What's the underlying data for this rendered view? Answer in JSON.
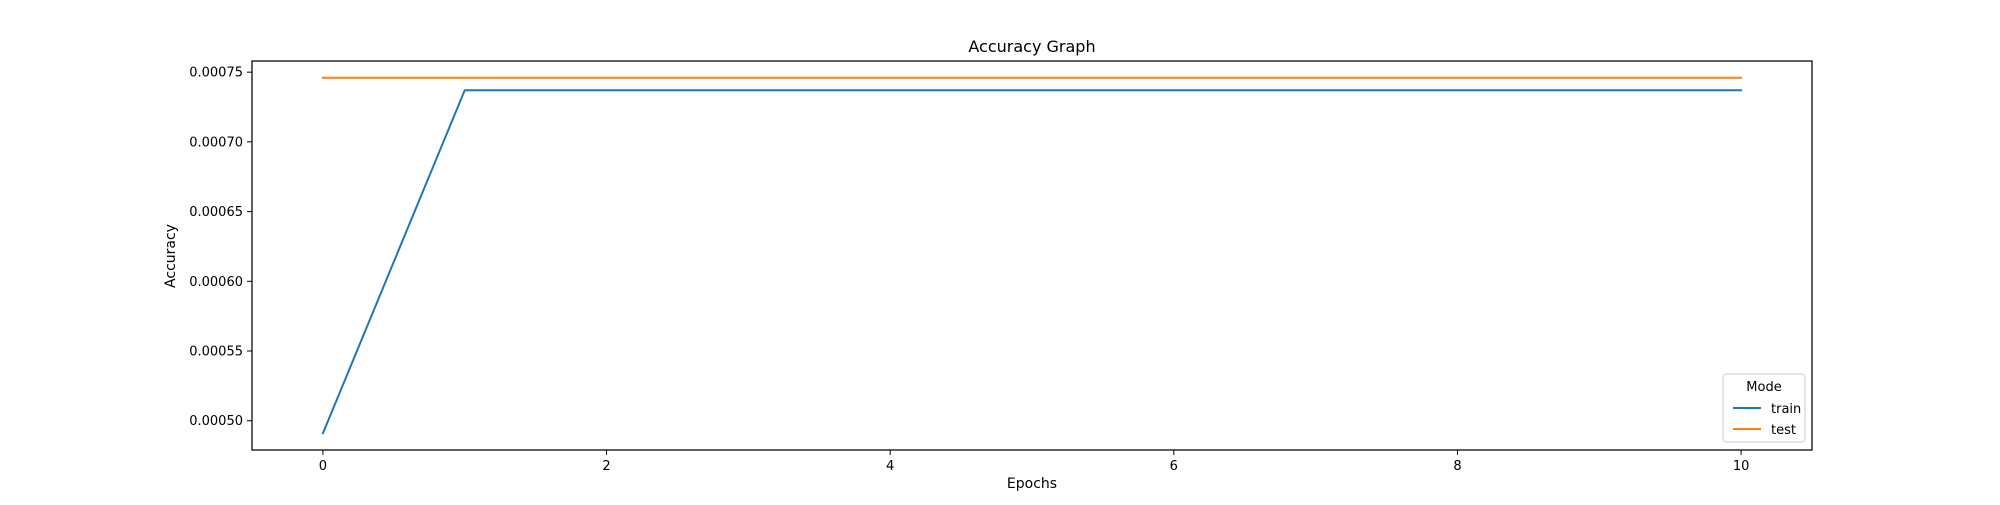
{
  "chart_data": {
    "type": "line",
    "title": "Accuracy Graph",
    "xlabel": "Epochs",
    "ylabel": "Accuracy",
    "x": [
      0,
      1,
      2,
      3,
      4,
      5,
      6,
      7,
      8,
      9,
      10
    ],
    "xlim": [
      -0.5,
      10.5
    ],
    "ylim": [
      0.000479,
      0.000758
    ],
    "xticks": [
      0,
      2,
      4,
      6,
      8,
      10
    ],
    "xtick_labels": [
      "0",
      "2",
      "4",
      "6",
      "8",
      "10"
    ],
    "yticks": [
      0.0005,
      0.00055,
      0.0006,
      0.00065,
      0.0007,
      0.00075
    ],
    "ytick_labels": [
      "0.00050",
      "0.00055",
      "0.00060",
      "0.00065",
      "0.00070",
      "0.00075"
    ],
    "grid": false,
    "legend": {
      "title": "Mode",
      "placement": "lower-right"
    },
    "series": [
      {
        "name": "train",
        "color": "#1f77b4",
        "values": [
          0.000491,
          0.000737,
          0.000737,
          0.000737,
          0.000737,
          0.000737,
          0.000737,
          0.000737,
          0.000737,
          0.000737,
          0.000737
        ]
      },
      {
        "name": "test",
        "color": "#ff7f0e",
        "values": [
          0.000746,
          0.000746,
          0.000746,
          0.000746,
          0.000746,
          0.000746,
          0.000746,
          0.000746,
          0.000746,
          0.000746,
          0.000746
        ]
      }
    ]
  }
}
